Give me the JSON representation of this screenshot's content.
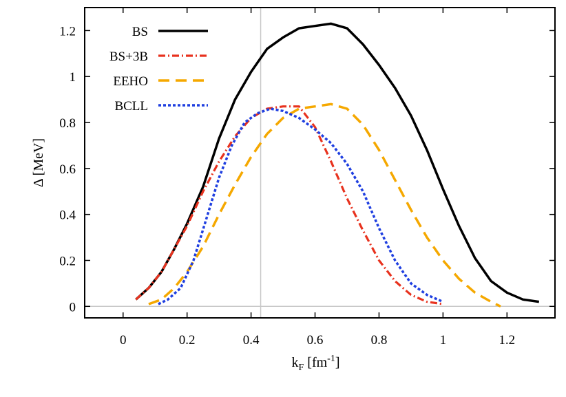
{
  "chart_data": {
    "type": "line",
    "title": "",
    "xlabel": {
      "base": "k",
      "sub": "F",
      "rest": " [fm",
      "sup": "-1",
      "end": "]"
    },
    "ylabel": "Δ [MeV]",
    "xlim": [
      -0.12,
      1.35
    ],
    "ylim": [
      -0.05,
      1.3
    ],
    "xticks": [
      0,
      0.2,
      0.4,
      0.6,
      0.8,
      1,
      1.2
    ],
    "xtick_labels": [
      "0",
      "0.2",
      "0.4",
      "0.6",
      "0.8",
      "1",
      "1.2"
    ],
    "yticks": [
      0,
      0.2,
      0.4,
      0.6,
      0.8,
      1,
      1.2
    ],
    "ytick_labels": [
      "0",
      "0.2",
      "0.4",
      "0.6",
      "0.8",
      "1",
      "1.2"
    ],
    "reference_lines": {
      "vertical_x": 0.43,
      "horizontal_y": 0
    },
    "legend_position": "top-left",
    "series": [
      {
        "name": "BS",
        "color": "#000000",
        "dash": "solid",
        "x": [
          0.04,
          0.08,
          0.12,
          0.16,
          0.2,
          0.25,
          0.3,
          0.35,
          0.4,
          0.45,
          0.5,
          0.55,
          0.6,
          0.65,
          0.7,
          0.75,
          0.8,
          0.85,
          0.9,
          0.95,
          1.0,
          1.05,
          1.1,
          1.15,
          1.2,
          1.25,
          1.3
        ],
        "y": [
          0.03,
          0.08,
          0.15,
          0.25,
          0.36,
          0.52,
          0.73,
          0.9,
          1.02,
          1.12,
          1.17,
          1.21,
          1.22,
          1.23,
          1.21,
          1.14,
          1.05,
          0.95,
          0.83,
          0.68,
          0.51,
          0.35,
          0.21,
          0.11,
          0.06,
          0.03,
          0.02
        ]
      },
      {
        "name": "BS+3B",
        "color": "#e8321e",
        "dash": "dashdot",
        "x": [
          0.04,
          0.08,
          0.12,
          0.16,
          0.2,
          0.25,
          0.3,
          0.35,
          0.4,
          0.45,
          0.5,
          0.55,
          0.6,
          0.65,
          0.7,
          0.75,
          0.8,
          0.85,
          0.9,
          0.95,
          1.0
        ],
        "y": [
          0.03,
          0.08,
          0.15,
          0.25,
          0.35,
          0.5,
          0.63,
          0.74,
          0.82,
          0.86,
          0.87,
          0.87,
          0.78,
          0.63,
          0.47,
          0.33,
          0.2,
          0.11,
          0.05,
          0.02,
          0.01
        ]
      },
      {
        "name": "EEHO",
        "color": "#f5a800",
        "dash": "dashed",
        "x": [
          0.08,
          0.12,
          0.16,
          0.2,
          0.25,
          0.3,
          0.35,
          0.4,
          0.45,
          0.5,
          0.55,
          0.6,
          0.65,
          0.7,
          0.75,
          0.8,
          0.85,
          0.9,
          0.95,
          1.0,
          1.05,
          1.1,
          1.15,
          1.18
        ],
        "y": [
          0.01,
          0.03,
          0.08,
          0.15,
          0.26,
          0.4,
          0.53,
          0.65,
          0.75,
          0.82,
          0.86,
          0.87,
          0.88,
          0.86,
          0.79,
          0.68,
          0.55,
          0.42,
          0.3,
          0.2,
          0.12,
          0.06,
          0.02,
          0.0
        ]
      },
      {
        "name": "BCLL",
        "color": "#1f3fe0",
        "dash": "dotted",
        "x": [
          0.11,
          0.14,
          0.18,
          0.22,
          0.26,
          0.3,
          0.34,
          0.38,
          0.42,
          0.46,
          0.5,
          0.55,
          0.6,
          0.65,
          0.7,
          0.75,
          0.8,
          0.85,
          0.9,
          0.95,
          1.0
        ],
        "y": [
          0.01,
          0.03,
          0.08,
          0.2,
          0.38,
          0.56,
          0.7,
          0.8,
          0.84,
          0.86,
          0.85,
          0.82,
          0.77,
          0.71,
          0.62,
          0.5,
          0.34,
          0.2,
          0.1,
          0.05,
          0.02
        ]
      }
    ]
  }
}
